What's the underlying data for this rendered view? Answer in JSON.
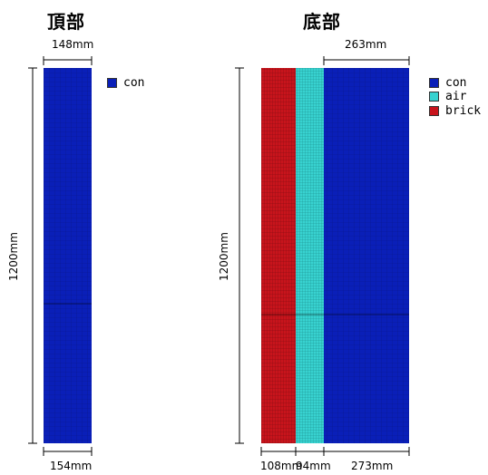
{
  "top_panel": {
    "title": "頂部",
    "dim_top": "148mm",
    "dim_bottom": "154mm",
    "dim_height": "1200mm",
    "legend": [
      {
        "label": "con",
        "color": "#0a1fb8"
      }
    ]
  },
  "bottom_panel": {
    "title": "底部",
    "dim_top": "263mm",
    "dim_height": "1200mm",
    "dims_bottom": [
      "108mm",
      "94mm",
      "273mm"
    ],
    "legend": [
      {
        "label": "con",
        "color": "#0a1fb8"
      },
      {
        "label": "air",
        "color": "#38d2d0"
      },
      {
        "label": "brick",
        "color": "#c8141c"
      }
    ]
  },
  "colors": {
    "con": "#0a1fb8",
    "air": "#38d2d0",
    "brick": "#c8141c"
  }
}
